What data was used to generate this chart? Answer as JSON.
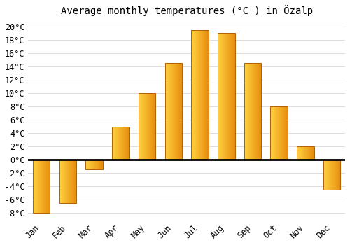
{
  "title": "Average monthly temperatures (°C ) in Özalp",
  "months": [
    "Jan",
    "Feb",
    "Mar",
    "Apr",
    "May",
    "Jun",
    "Jul",
    "Aug",
    "Sep",
    "Oct",
    "Nov",
    "Dec"
  ],
  "temperatures": [
    -8,
    -6.5,
    -1.5,
    5,
    10,
    14.5,
    19.5,
    19,
    14.5,
    8,
    2,
    -4.5
  ],
  "bar_color_left": "#FFD060",
  "bar_color_right": "#E08000",
  "bar_edge_color": "#B06000",
  "background_color": "#FFFFFF",
  "grid_color": "#DDDDDD",
  "ylim": [
    -9,
    21
  ],
  "yticks": [
    -8,
    -6,
    -4,
    -2,
    0,
    2,
    4,
    6,
    8,
    10,
    12,
    14,
    16,
    18,
    20
  ],
  "title_fontsize": 10,
  "tick_fontsize": 8.5
}
